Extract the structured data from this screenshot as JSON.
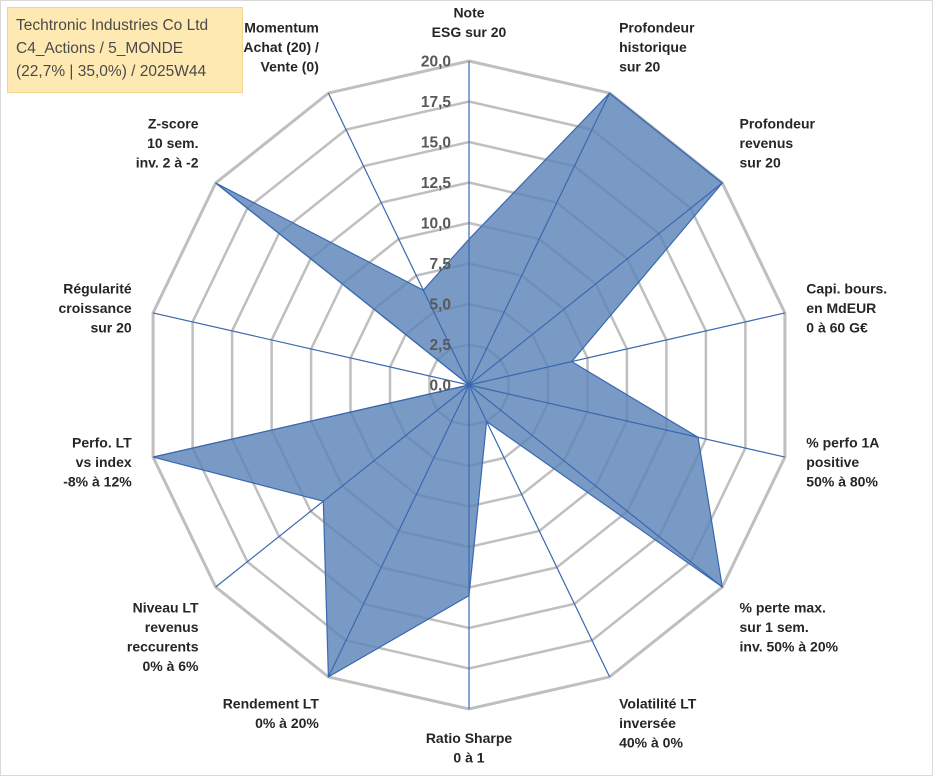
{
  "title_box": {
    "line1": "Techtronic Industries Co Ltd",
    "line2": "C4_Actions / 5_MONDE",
    "line3": "(22,7% | 35,0%) / 2025W44"
  },
  "colors": {
    "series_fill": "#5b84b8",
    "series_line": "#3a68b0",
    "grid": "#bfbfbf",
    "title_bg": "#ffe9b3"
  },
  "chart_data": {
    "type": "radar",
    "title": "Techtronic Industries Co Ltd",
    "r_range": [
      0,
      20
    ],
    "tick_step": 2.5,
    "tick_labels": [
      "0,0",
      "2,5",
      "5,0",
      "7,5",
      "10,0",
      "12,5",
      "15,0",
      "17,5",
      "20,0"
    ],
    "grid": true,
    "legend": "none",
    "axes": [
      {
        "label_lines": [
          "Note",
          "ESG sur 20"
        ]
      },
      {
        "label_lines": [
          "Profondeur",
          "historique",
          "sur 20"
        ]
      },
      {
        "label_lines": [
          "Profondeur",
          "revenus",
          "sur 20"
        ]
      },
      {
        "label_lines": [
          "Capi. bours.",
          "en MdEUR",
          "0 à 60 G€"
        ]
      },
      {
        "label_lines": [
          "% perfo 1A",
          "positive",
          "50% à 80%"
        ]
      },
      {
        "label_lines": [
          "% perte max.",
          "sur 1 sem.",
          "inv. 50% à 20%"
        ]
      },
      {
        "label_lines": [
          "Volatilité LT",
          "inversée",
          "40% à 0%"
        ]
      },
      {
        "label_lines": [
          "Ratio Sharpe",
          "0 à 1"
        ]
      },
      {
        "label_lines": [
          "Rendement LT",
          "0% à 20%"
        ]
      },
      {
        "label_lines": [
          "Niveau LT",
          "revenus",
          "reccurents",
          "0% à 6%"
        ]
      },
      {
        "label_lines": [
          "Perfo. LT",
          "vs index",
          "-8% à 12%"
        ]
      },
      {
        "label_lines": [
          "Régularité",
          "croissance",
          "sur 20"
        ]
      },
      {
        "label_lines": [
          "Z-score",
          "10 sem.",
          "inv. 2 à -2"
        ]
      },
      {
        "label_lines": [
          "Momentum",
          "Achat (20) /",
          "Vente (0)"
        ]
      }
    ],
    "series": [
      {
        "name": "Techtronic Industries Co Ltd",
        "values": [
          9,
          20,
          20,
          6.5,
          14.5,
          20,
          2.5,
          13,
          20,
          11.5,
          20,
          0,
          20,
          6.5
        ]
      }
    ]
  }
}
